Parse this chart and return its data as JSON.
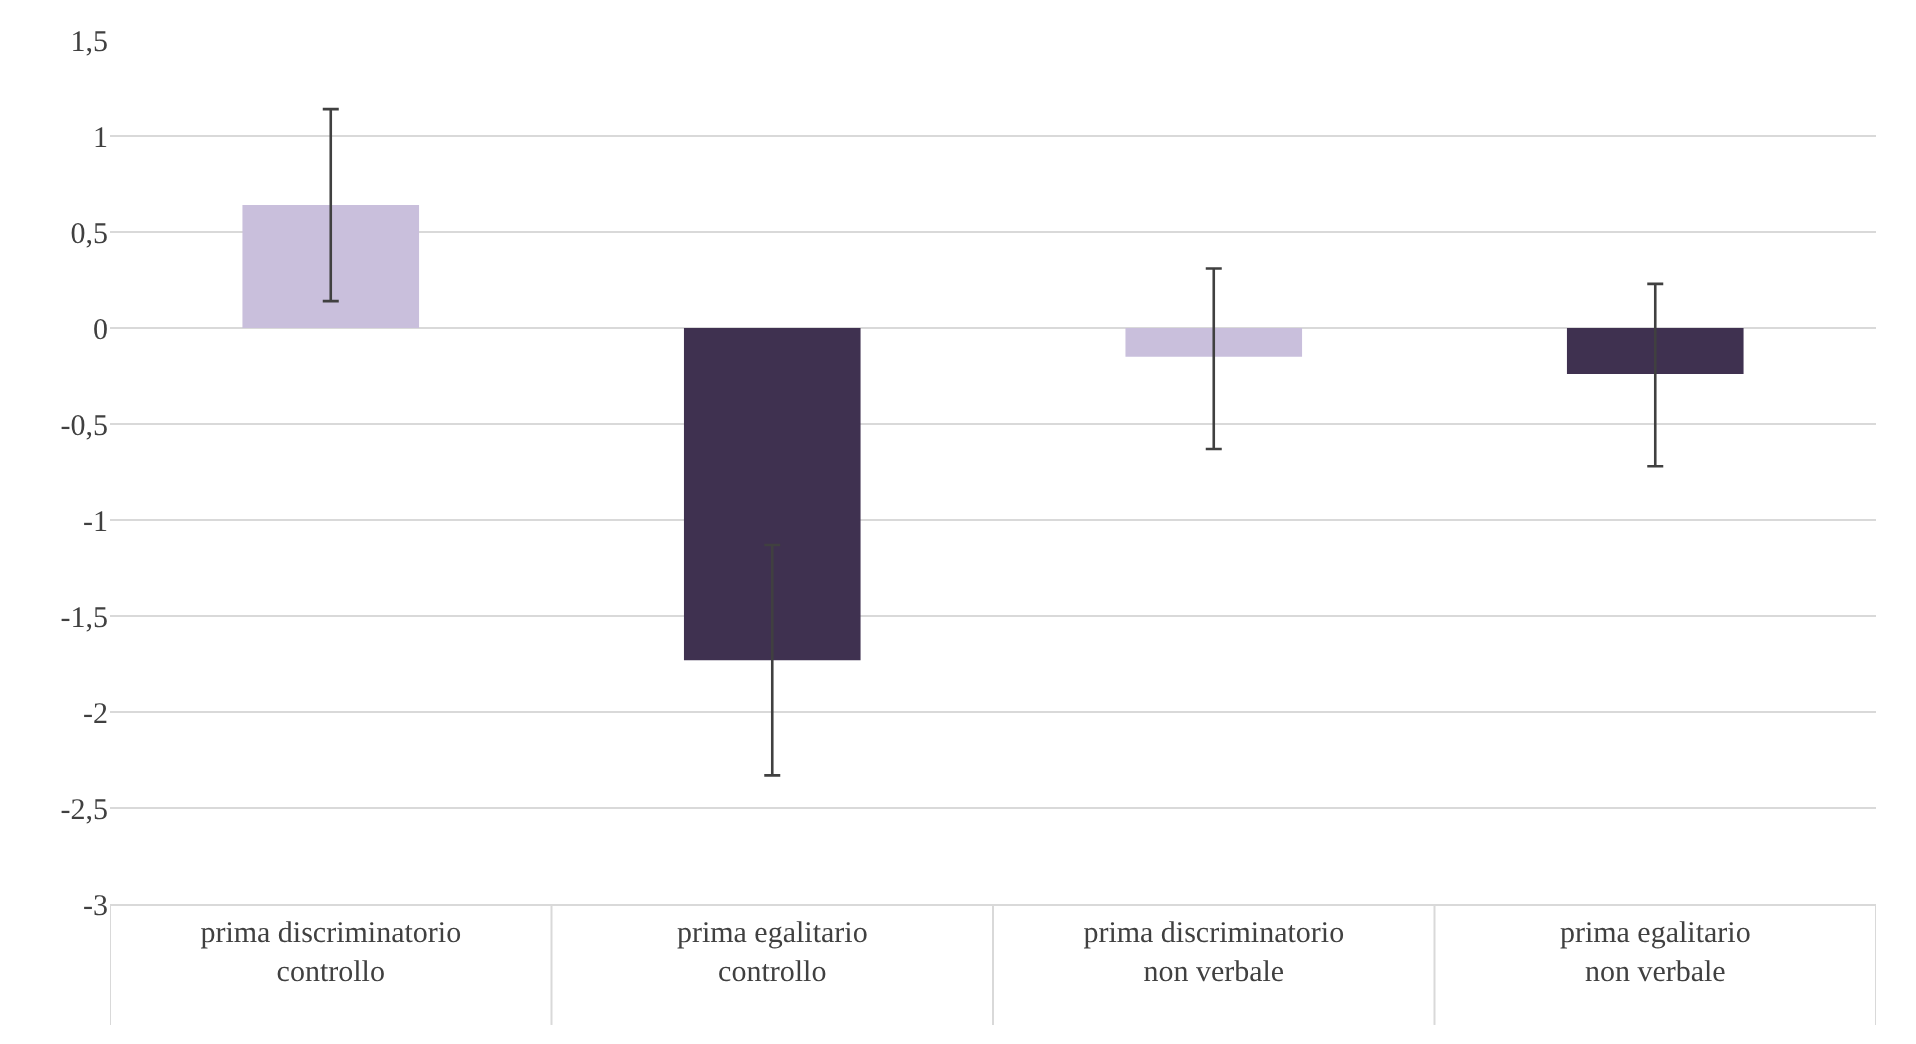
{
  "chart_data": {
    "type": "bar",
    "categories": [
      "prima discriminatorio\ncontrollo",
      "prima egalitario\ncontrollo",
      "prima discriminatorio\nnon verbale",
      "prima egalitario\nnon verbale"
    ],
    "values": [
      0.64,
      -1.73,
      -0.15,
      -0.24
    ],
    "colors": [
      "#c9bfdc",
      "#3f3150",
      "#c9bfdc",
      "#3f3150"
    ],
    "errors": [
      [
        0.14,
        1.14
      ],
      [
        -2.33,
        -1.13
      ],
      [
        -0.63,
        0.31
      ],
      [
        -0.72,
        0.23
      ]
    ],
    "ylim": [
      -3,
      1.5
    ],
    "yticks": [
      {
        "value": -3,
        "label": "-3"
      },
      {
        "value": -2.5,
        "label": "-2,5"
      },
      {
        "value": -2,
        "label": "-2"
      },
      {
        "value": -1.5,
        "label": "-1,5"
      },
      {
        "value": -1,
        "label": "-1"
      },
      {
        "value": -0.5,
        "label": "-0,5"
      },
      {
        "value": 0,
        "label": "0"
      },
      {
        "value": 0.5,
        "label": "0,5"
      },
      {
        "value": 1,
        "label": "1"
      },
      {
        "value": 1.5,
        "label": "1,5"
      }
    ],
    "grid": "y"
  }
}
